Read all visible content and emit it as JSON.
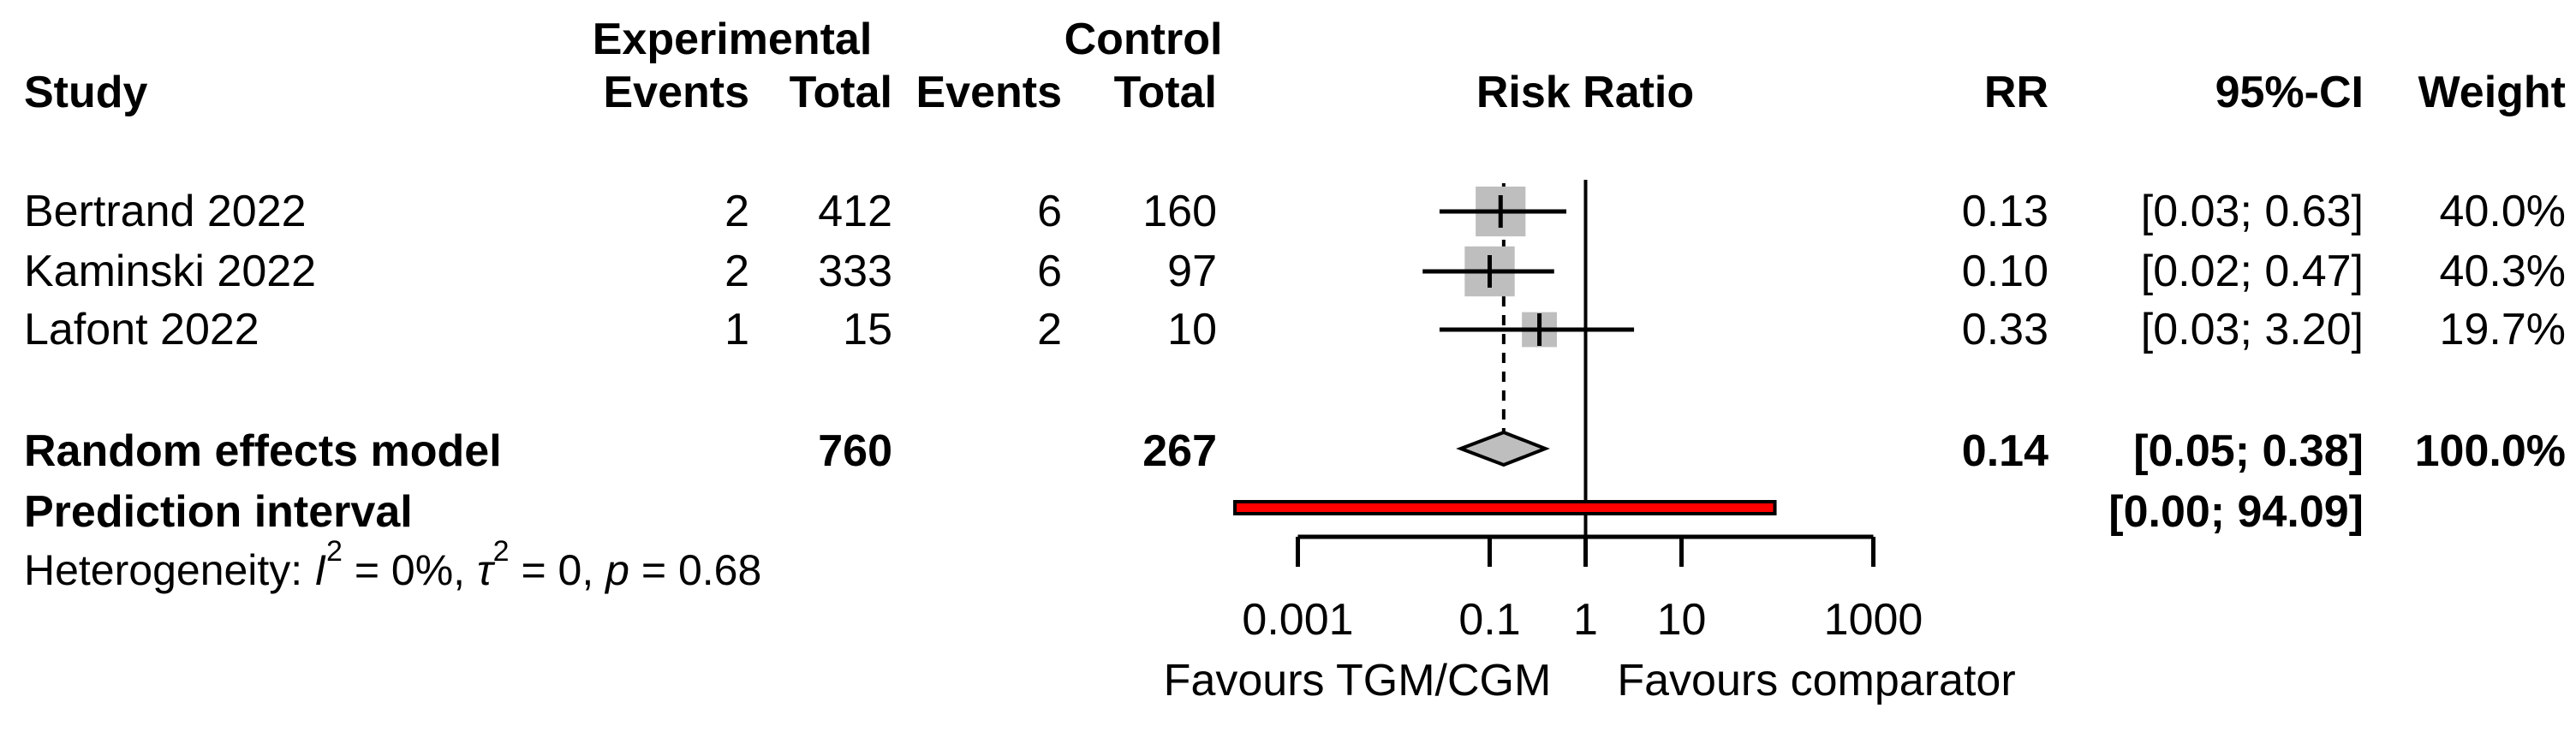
{
  "header": {
    "study": "Study",
    "experimental": "Experimental",
    "control": "Control",
    "events": "Events",
    "total": "Total",
    "risk_ratio": "Risk Ratio",
    "rr": "RR",
    "ci": "95%-CI",
    "weight": "Weight"
  },
  "chart_data": {
    "type": "forest",
    "effect_measure": "Risk Ratio",
    "x_axis": {
      "scale": "log",
      "ticks": [
        0.001,
        0.1,
        1,
        10,
        1000
      ],
      "tick_labels": [
        "0.001",
        "0.1",
        "1",
        "10",
        "1000"
      ],
      "reference_line": 1,
      "pooled_dashed_line": 0.14,
      "range": [
        0.001,
        1000
      ]
    },
    "studies": [
      {
        "study": "Bertrand 2022",
        "events_exp": "2",
        "total_exp": "412",
        "events_ctrl": "6",
        "total_ctrl": "160",
        "rr": 0.13,
        "ci_low": 0.03,
        "ci_high": 0.63,
        "weight": 40.0,
        "rr_label": "0.13",
        "ci_label": "[0.03; 0.63]",
        "weight_label": "40.0%"
      },
      {
        "study": "Kaminski 2022",
        "events_exp": "2",
        "total_exp": "333",
        "events_ctrl": "6",
        "total_ctrl": "97",
        "rr": 0.1,
        "ci_low": 0.02,
        "ci_high": 0.47,
        "weight": 40.3,
        "rr_label": "0.10",
        "ci_label": "[0.02; 0.47]",
        "weight_label": "40.3%"
      },
      {
        "study": "Lafont 2022",
        "events_exp": "1",
        "total_exp": "15",
        "events_ctrl": "2",
        "total_ctrl": "10",
        "rr": 0.33,
        "ci_low": 0.03,
        "ci_high": 3.2,
        "weight": 19.7,
        "rr_label": "0.33",
        "ci_label": "[0.03; 3.20]",
        "weight_label": "19.7%"
      }
    ],
    "summary": {
      "label": "Random effects model",
      "total_exp": "760",
      "total_ctrl": "267",
      "rr": 0.14,
      "ci_low": 0.05,
      "ci_high": 0.38,
      "rr_label": "0.14",
      "ci_label": "[0.05; 0.38]",
      "weight_label": "100.0%"
    },
    "prediction_interval": {
      "label": "Prediction interval",
      "ci_low": 0.0,
      "ci_high": 94.09,
      "ci_label": "[0.00; 94.09]"
    },
    "heterogeneity": {
      "prefix": "Heterogeneity: ",
      "i_sym": "I",
      "i_sup": "2",
      "i_eq": " = 0%, ",
      "tau_sym": "τ",
      "tau_sup": "2",
      "tau_eq": " = 0, ",
      "p_sym": "p",
      "p_eq": " = 0.68"
    },
    "footer": {
      "favours_left": "Favours TGM/CGM",
      "favours_right": "Favours comparator"
    },
    "colors": {
      "square": "#bebebe",
      "diamond_fill": "#bebebe",
      "prediction_bar": "#ff0000",
      "line": "#000000"
    }
  }
}
